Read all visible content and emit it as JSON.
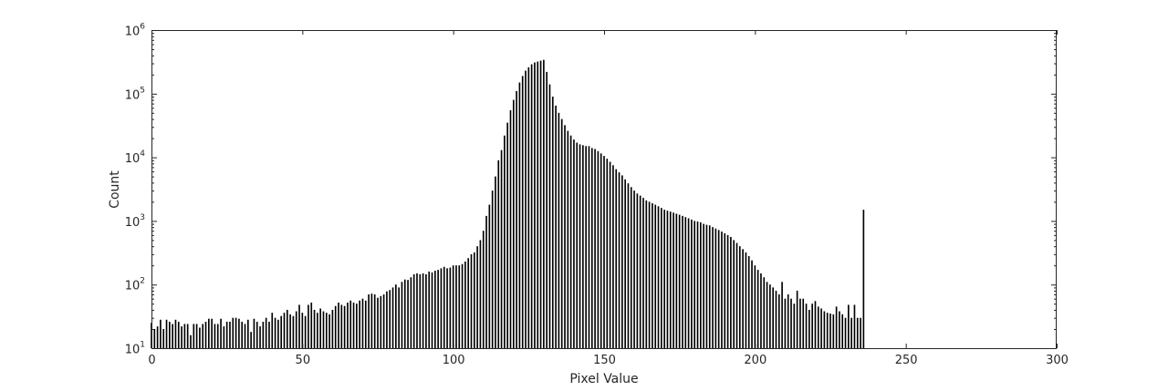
{
  "chart_data": {
    "type": "bar",
    "title": "",
    "xlabel": "Pixel Value",
    "ylabel": "Count",
    "xlim": [
      0,
      300
    ],
    "ylim": [
      10,
      1000000
    ],
    "yscale": "log",
    "grid": false,
    "bar_color": "#000000",
    "x_ticks": [
      0,
      50,
      100,
      150,
      200,
      250,
      300
    ],
    "x_tick_labels": [
      "0",
      "50",
      "100",
      "150",
      "200",
      "250",
      "300"
    ],
    "y_ticks": [
      10,
      100,
      1000,
      10000,
      100000,
      1000000
    ],
    "y_tick_labels": [
      {
        "base": "10",
        "exp": "1"
      },
      {
        "base": "10",
        "exp": "2"
      },
      {
        "base": "10",
        "exp": "3"
      },
      {
        "base": "10",
        "exp": "4"
      },
      {
        "base": "10",
        "exp": "5"
      },
      {
        "base": "10",
        "exp": "6"
      }
    ],
    "series": [
      {
        "values": [
          25,
          20,
          22,
          28,
          20,
          28,
          26,
          24,
          28,
          26,
          22,
          24,
          24,
          16,
          24,
          24,
          21,
          24,
          26,
          29,
          29,
          24,
          24,
          29,
          22,
          26,
          26,
          30,
          30,
          29,
          26,
          24,
          28,
          18,
          29,
          26,
          22,
          26,
          30,
          26,
          36,
          30,
          28,
          32,
          36,
          40,
          34,
          32,
          38,
          48,
          36,
          32,
          48,
          52,
          40,
          36,
          42,
          38,
          36,
          34,
          40,
          46,
          52,
          48,
          46,
          52,
          56,
          52,
          50,
          56,
          60,
          56,
          70,
          72,
          70,
          62,
          66,
          70,
          78,
          82,
          90,
          100,
          90,
          110,
          120,
          118,
          130,
          145,
          150,
          145,
          150,
          145,
          160,
          155,
          165,
          170,
          180,
          190,
          180,
          185,
          200,
          200,
          200,
          210,
          230,
          260,
          300,
          320,
          400,
          500,
          700,
          1200,
          1800,
          3000,
          5000,
          9000,
          13000,
          22000,
          35000,
          55000,
          80000,
          110000,
          150000,
          190000,
          230000,
          260000,
          290000,
          310000,
          320000,
          330000,
          340000,
          220000,
          140000,
          90000,
          65000,
          50000,
          40000,
          32000,
          26000,
          22000,
          19000,
          17000,
          16000,
          15500,
          15000,
          15000,
          14000,
          13500,
          12500,
          11500,
          10500,
          9500,
          8500,
          7500,
          6500,
          5800,
          5200,
          4500,
          3900,
          3400,
          3000,
          2700,
          2500,
          2300,
          2100,
          2000,
          1900,
          1800,
          1700,
          1600,
          1500,
          1450,
          1400,
          1350,
          1300,
          1250,
          1200,
          1150,
          1100,
          1050,
          1000,
          980,
          950,
          900,
          870,
          850,
          800,
          760,
          720,
          680,
          640,
          600,
          560,
          500,
          450,
          400,
          360,
          320,
          280,
          240,
          200,
          170,
          150,
          130,
          110,
          100,
          90,
          80,
          70,
          110,
          60,
          70,
          60,
          50,
          80,
          60,
          60,
          50,
          40,
          50,
          55,
          45,
          42,
          38,
          36,
          35,
          34,
          45,
          38,
          34,
          30,
          48,
          30,
          48,
          30,
          30,
          1500
        ]
      }
    ]
  }
}
